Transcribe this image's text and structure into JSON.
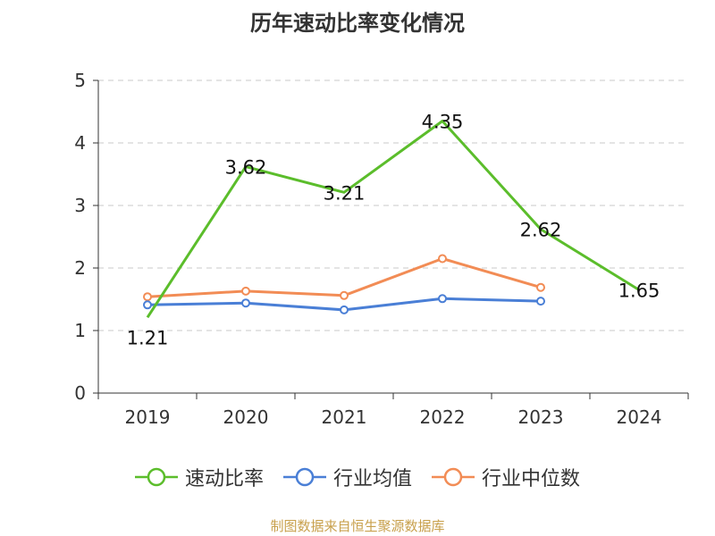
{
  "chart_data": {
    "type": "line",
    "title": "历年速动比率变化情况",
    "xlabel": "",
    "ylabel": "",
    "categories": [
      "2019",
      "2020",
      "2021",
      "2022",
      "2023",
      "2024"
    ],
    "ylim": [
      0,
      5
    ],
    "yticks": [
      "0",
      "1",
      "2",
      "3",
      "4",
      "5"
    ],
    "grid": true,
    "legend_position": "bottom",
    "series": [
      {
        "name": "速动比率",
        "color": "#5bbd2b",
        "values": [
          1.21,
          3.62,
          3.21,
          4.35,
          2.62,
          1.65
        ],
        "labels": [
          "1.21",
          "3.62",
          "3.21",
          "4.35",
          "2.62",
          "1.65"
        ]
      },
      {
        "name": "行业均值",
        "color": "#4a7fd6",
        "values": [
          1.41,
          1.44,
          1.33,
          1.51,
          1.47,
          null
        ]
      },
      {
        "name": "行业中位数",
        "color": "#f28c55",
        "values": [
          1.54,
          1.63,
          1.56,
          2.15,
          1.69,
          null
        ]
      }
    ]
  },
  "source_text": "制图数据来自恒生聚源数据库"
}
